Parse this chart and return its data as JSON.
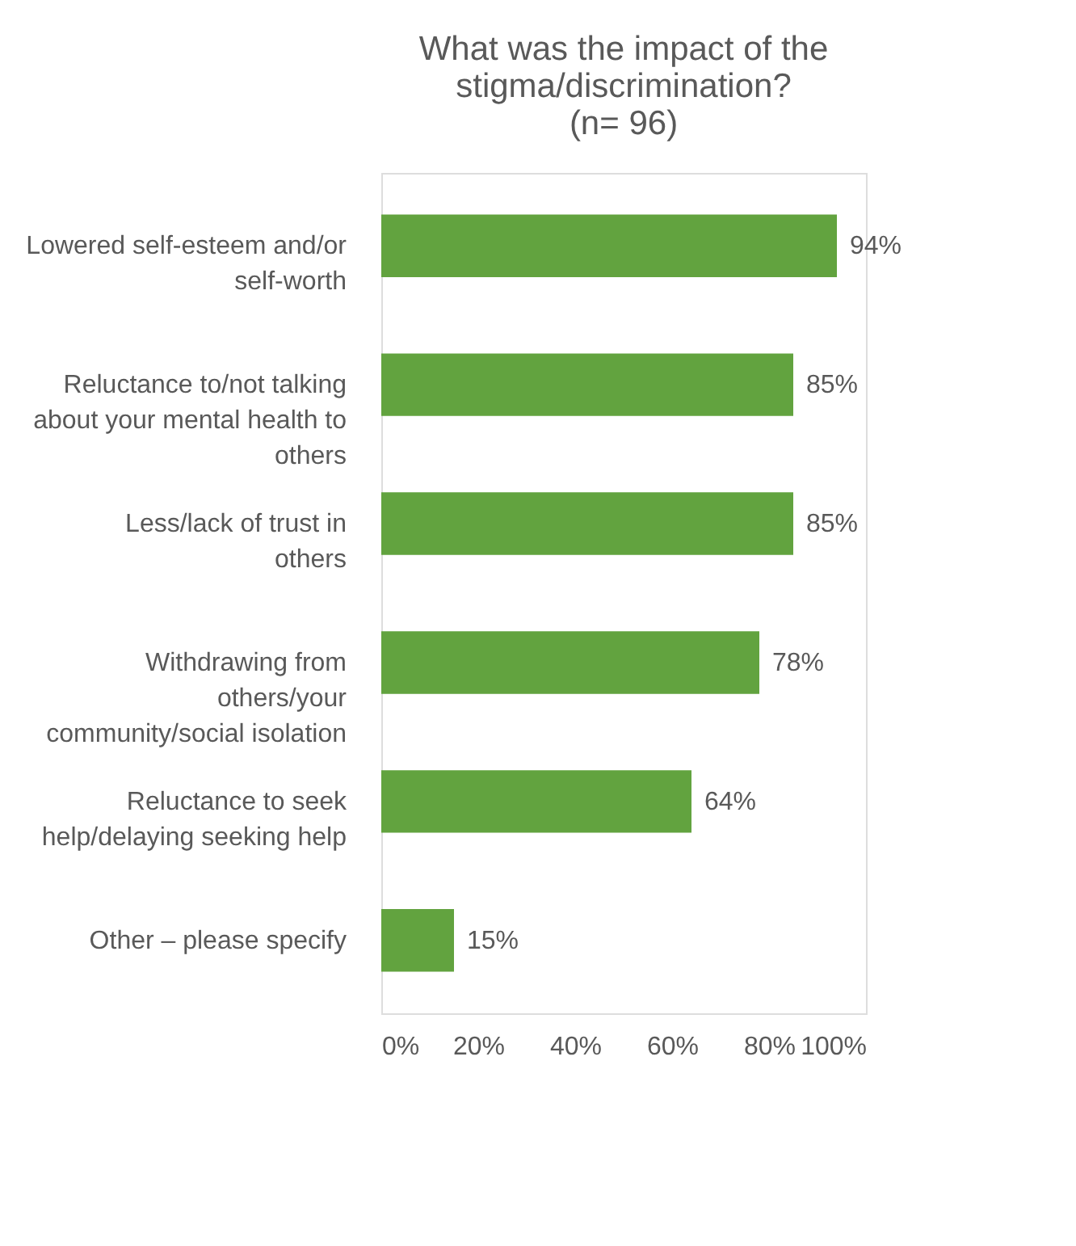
{
  "chart_data": {
    "type": "bar",
    "orientation": "horizontal",
    "title": [
      "What was the impact of the",
      "stigma/discrimination?",
      "(n= 96)"
    ],
    "categories": [
      "Lowered self-esteem and/or self-worth",
      "Reluctance to/not talking about your mental health to others",
      "Less/lack of trust in others",
      "Withdrawing from others/your community/social isolation",
      "Reluctance to seek help/delaying seeking help",
      "Other – please specify"
    ],
    "values": [
      94,
      85,
      85,
      78,
      64,
      15
    ],
    "value_labels": [
      "94%",
      "85%",
      "85%",
      "78%",
      "64%",
      "15%"
    ],
    "color": "#62a33f",
    "xlim": [
      0,
      100
    ],
    "xticks": [
      {
        "value": 0,
        "label": "0%"
      },
      {
        "value": 20,
        "label": "20%"
      },
      {
        "value": 40,
        "label": "40%"
      },
      {
        "value": 60,
        "label": "60%"
      },
      {
        "value": 80,
        "label": "80%"
      },
      {
        "value": 100,
        "label": "100%"
      }
    ],
    "grid": false
  }
}
